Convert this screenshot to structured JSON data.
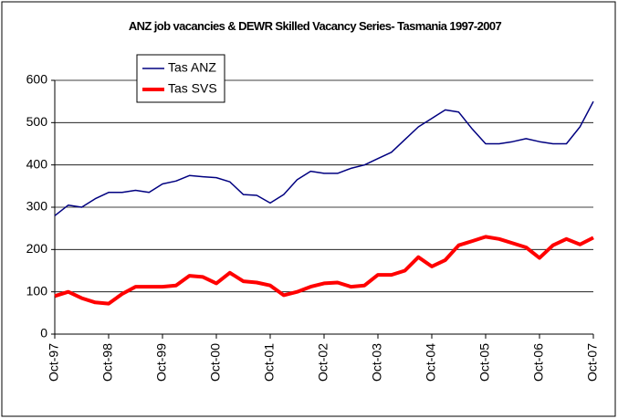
{
  "chart_data": {
    "type": "line",
    "title": "ANZ job vacancies & DEWR Skilled Vacancy Series- Tasmania 1997-2007",
    "categories": [
      "Oct-97",
      null,
      null,
      null,
      "Oct-98",
      null,
      null,
      null,
      "Oct-99",
      null,
      null,
      null,
      "Oct-00",
      null,
      null,
      null,
      "Oct-01",
      null,
      null,
      null,
      "Oct-02",
      null,
      null,
      null,
      "Oct-03",
      null,
      null,
      null,
      "Oct-04",
      null,
      null,
      null,
      "Oct-05",
      null,
      null,
      null,
      "Oct-06",
      null,
      null,
      null,
      "Oct-07"
    ],
    "series": [
      {
        "name": "Tas ANZ",
        "color": "#000080",
        "values": [
          280,
          305,
          300,
          320,
          335,
          335,
          340,
          335,
          355,
          362,
          375,
          372,
          370,
          360,
          330,
          328,
          310,
          330,
          365,
          385,
          380,
          380,
          392,
          400,
          415,
          430,
          460,
          490,
          510,
          530,
          525,
          485,
          450,
          450,
          455,
          462,
          455,
          450,
          450,
          490,
          550
        ]
      },
      {
        "name": "Tas SVS",
        "color": "#ff0000",
        "values": [
          90,
          100,
          85,
          75,
          72,
          95,
          112,
          112,
          112,
          115,
          138,
          135,
          120,
          145,
          125,
          122,
          115,
          92,
          100,
          112,
          120,
          122,
          112,
          115,
          140,
          140,
          150,
          182,
          160,
          175,
          210,
          220,
          230,
          225,
          215,
          205,
          180,
          210,
          225,
          212,
          228
        ]
      }
    ],
    "ylim": [
      0,
      600
    ],
    "yticks": [
      0,
      100,
      200,
      300,
      400,
      500,
      600
    ],
    "grid": true
  }
}
